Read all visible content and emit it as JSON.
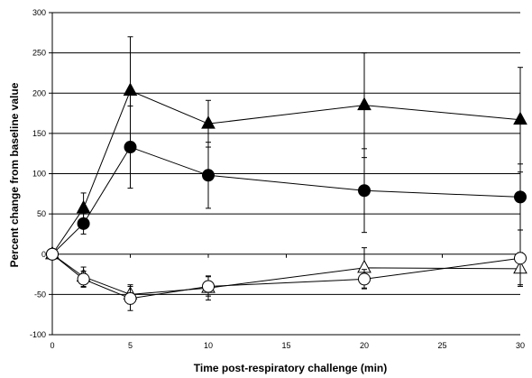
{
  "chart_data": {
    "type": "line",
    "title": "",
    "xlabel": "Time post-respiratory challenge (min)",
    "ylabel": "Percent change from baseline value",
    "xlim": [
      0,
      30
    ],
    "ylim": [
      -100,
      300
    ],
    "xticks": [
      0,
      5,
      10,
      15,
      20,
      25,
      30
    ],
    "yticks": [
      -100,
      -50,
      0,
      50,
      100,
      150,
      200,
      250,
      300
    ],
    "grid": "horizontal",
    "legend": "none",
    "series": [
      {
        "marker": "filled-triangle",
        "x": [
          0,
          2,
          5,
          10,
          20,
          30
        ],
        "y": [
          0,
          57,
          203,
          162,
          185,
          167
        ],
        "err_up": [
          0,
          19,
          67,
          29,
          65,
          65
        ],
        "err_down": [
          0,
          19,
          67,
          29,
          65,
          65
        ]
      },
      {
        "marker": "filled-circle",
        "x": [
          0,
          2,
          5,
          10,
          20,
          30
        ],
        "y": [
          0,
          38,
          133,
          98,
          79,
          71
        ],
        "err_up": [
          0,
          13,
          51,
          41,
          52,
          41
        ],
        "err_down": [
          0,
          13,
          51,
          41,
          52,
          41
        ]
      },
      {
        "marker": "open-triangle",
        "x": [
          0,
          2,
          5,
          10,
          20,
          30
        ],
        "y": [
          0,
          -28,
          -50,
          -42,
          -17,
          -18
        ],
        "err_up": [
          0,
          12,
          12,
          15,
          25,
          20
        ],
        "err_down": [
          0,
          12,
          12,
          15,
          25,
          20
        ]
      },
      {
        "marker": "open-circle",
        "x": [
          0,
          2,
          5,
          10,
          20,
          30
        ],
        "y": [
          0,
          -31,
          -55,
          -40,
          -31,
          -5
        ],
        "err_up": [
          0,
          10,
          15,
          12,
          12,
          35
        ],
        "err_down": [
          0,
          10,
          15,
          12,
          12,
          35
        ]
      }
    ]
  }
}
